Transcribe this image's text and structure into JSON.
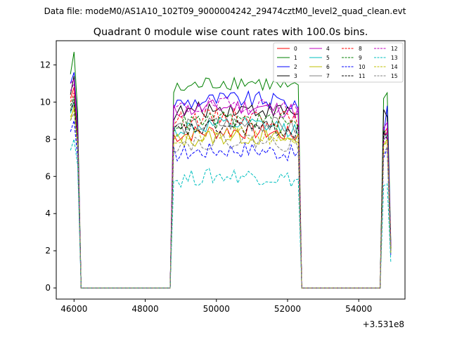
{
  "figure": {
    "suptitle": "Data file: modeM0/AS1A10_102T09_9000004242_29474cztM0_level2_quad_clean.evt"
  },
  "chart_data": {
    "type": "line",
    "title": "Quadrant 0 module wise count rates with 100.0s bins.",
    "xlabel": "",
    "ylabel": "",
    "x_offset_label": "+3.531e8",
    "xlim": [
      45500,
      55300
    ],
    "ylim": [
      -0.6,
      13.3
    ],
    "xticks": [
      46000,
      48000,
      50000,
      52000,
      54000
    ],
    "xtick_labels": [
      "46000",
      "48000",
      "50000",
      "52000",
      "54000"
    ],
    "yticks": [
      0,
      2,
      4,
      6,
      8,
      10,
      12
    ],
    "ytick_labels": [
      "0",
      "2",
      "4",
      "6",
      "8",
      "10",
      "12"
    ],
    "legend_location": "upper-right",
    "segments": [
      {
        "x_start": 45900,
        "x_end": 46200,
        "step": 100
      },
      {
        "x_start": 48700,
        "x_end": 52400,
        "step": 100
      },
      {
        "x_start": 54600,
        "x_end": 54900,
        "step": 100
      }
    ],
    "gaps": [
      [
        46200,
        48700
      ],
      [
        52400,
        54600
      ]
    ],
    "series": [
      {
        "name": "0",
        "color": "#ff0000",
        "dash": "solid",
        "level": 8.2,
        "edge_a": [
          10.2,
          10.8,
          8.0
        ],
        "edge_b": [
          8.3,
          8.6
        ]
      },
      {
        "name": "1",
        "color": "#008000",
        "dash": "solid",
        "level": 10.6,
        "edge_a": [
          11.5,
          12.7,
          9.5
        ],
        "edge_b": [
          10.2,
          10.5
        ]
      },
      {
        "name": "2",
        "color": "#0000ff",
        "dash": "solid",
        "level": 9.9,
        "edge_a": [
          11.0,
          11.6,
          8.8
        ],
        "edge_b": [
          8.2,
          9.8
        ]
      },
      {
        "name": "3",
        "color": "#000000",
        "dash": "solid",
        "level": 9.4,
        "edge_a": [
          10.4,
          11.4,
          8.6
        ],
        "edge_b": [
          9.6,
          9.2
        ]
      },
      {
        "name": "4",
        "color": "#bf00bf",
        "dash": "solid",
        "level": 9.5,
        "edge_a": [
          11.0,
          11.2,
          8.4
        ],
        "edge_b": [
          8.6,
          8.9
        ]
      },
      {
        "name": "5",
        "color": "#00bfbf",
        "dash": "solid",
        "level": 8.5,
        "edge_a": [
          9.4,
          10.0,
          7.8
        ],
        "edge_b": [
          8.0,
          8.2
        ]
      },
      {
        "name": "6",
        "color": "#bfbf00",
        "dash": "solid",
        "level": 7.9,
        "edge_a": [
          9.0,
          9.8,
          7.6
        ],
        "edge_b": [
          7.7,
          8.0
        ]
      },
      {
        "name": "7",
        "color": "#808080",
        "dash": "solid",
        "level": 8.6,
        "edge_a": [
          9.6,
          10.2,
          7.9
        ],
        "edge_b": [
          8.1,
          8.4
        ]
      },
      {
        "name": "8",
        "color": "#ff0000",
        "dash": "dashed",
        "level": 9.0,
        "edge_a": [
          10.0,
          10.5,
          8.2
        ],
        "edge_b": [
          8.2,
          8.4
        ]
      },
      {
        "name": "9",
        "color": "#008000",
        "dash": "dashed",
        "level": 8.8,
        "edge_a": [
          9.8,
          10.3,
          8.0
        ],
        "edge_b": [
          8.5,
          8.2
        ]
      },
      {
        "name": "10",
        "color": "#0000ff",
        "dash": "dashed",
        "level": 7.2,
        "edge_a": [
          8.4,
          9.0,
          7.0
        ],
        "edge_b": [
          7.0,
          7.5
        ]
      },
      {
        "name": "11",
        "color": "#000000",
        "dash": "dashed",
        "level": 8.4,
        "edge_a": [
          9.5,
          10.0,
          7.9
        ],
        "edge_b": [
          8.4,
          8.0
        ]
      },
      {
        "name": "12",
        "color": "#bf00bf",
        "dash": "dashed",
        "level": 9.6,
        "edge_a": [
          10.6,
          11.0,
          8.3
        ],
        "edge_b": [
          7.8,
          8.5
        ]
      },
      {
        "name": "13",
        "color": "#00bfbf",
        "dash": "dashed",
        "level": 5.8,
        "edge_a": [
          7.4,
          8.0,
          6.6
        ],
        "edge_b": [
          5.5,
          5.6
        ]
      },
      {
        "name": "14",
        "color": "#bfbf00",
        "dash": "dashed",
        "level": 8.0,
        "edge_a": [
          9.2,
          9.6,
          7.7
        ],
        "edge_b": [
          7.6,
          7.9
        ]
      },
      {
        "name": "15",
        "color": "#808080",
        "dash": "dashed",
        "level": 7.7,
        "edge_a": [
          9.0,
          9.4,
          7.5
        ],
        "edge_b": [
          7.2,
          7.6
        ]
      }
    ]
  }
}
